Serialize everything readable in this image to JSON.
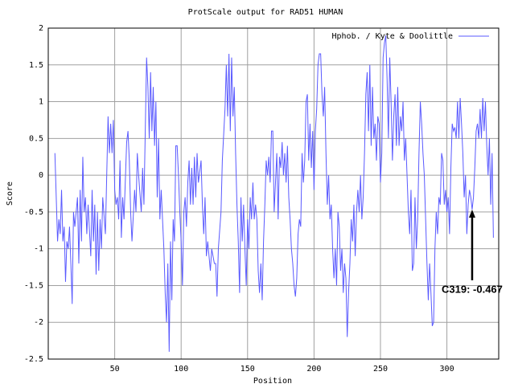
{
  "chart_data": {
    "type": "line",
    "title": "ProtScale output for RAD51 HUMAN",
    "x_label": "Position",
    "y_label": "Score",
    "x": [
      5,
      6,
      7,
      8,
      9,
      10,
      11,
      12,
      13,
      14,
      15,
      16,
      17,
      18,
      19,
      20,
      22,
      23,
      24,
      25,
      26,
      27,
      28,
      29,
      30,
      32,
      33,
      34,
      35,
      36,
      37,
      38,
      39,
      40,
      41,
      43,
      45,
      46,
      47,
      48,
      49,
      50,
      51,
      52,
      53,
      54,
      55,
      56,
      57,
      59,
      60,
      61,
      62,
      63,
      65,
      66,
      67,
      68,
      70,
      71,
      72,
      74,
      75,
      76,
      77,
      78,
      79,
      80,
      81,
      82,
      83,
      84,
      85,
      86,
      87,
      88,
      89,
      90,
      91,
      92,
      93,
      94,
      95,
      96,
      97,
      98,
      99,
      100,
      101,
      102,
      103,
      104,
      105,
      106,
      107,
      108,
      109,
      110,
      111,
      112,
      113,
      115,
      116,
      117,
      118,
      119,
      120,
      122,
      123,
      125,
      126,
      127,
      128,
      130,
      131,
      133,
      134,
      135,
      136,
      137,
      138,
      139,
      140,
      141,
      142,
      143,
      144,
      145,
      146,
      147,
      148,
      149,
      150,
      151,
      152,
      153,
      154,
      155,
      156,
      157,
      158,
      159,
      160,
      161,
      162,
      163,
      164,
      165,
      166,
      167,
      168,
      169,
      170,
      171,
      172,
      173,
      174,
      175,
      176,
      177,
      178,
      179,
      180,
      181,
      182,
      183,
      184,
      185,
      186,
      187,
      188,
      189,
      190,
      191,
      192,
      193,
      194,
      195,
      196,
      197,
      198,
      199,
      200,
      201,
      202,
      203,
      204,
      205,
      206,
      207,
      208,
      209,
      210,
      211,
      212,
      213,
      214,
      215,
      216,
      217,
      218,
      219,
      220,
      221,
      222,
      223,
      224,
      225,
      226,
      227,
      228,
      229,
      230,
      231,
      232,
      233,
      234,
      235,
      236,
      237,
      238,
      239,
      240,
      241,
      242,
      243,
      244,
      245,
      246,
      247,
      248,
      249,
      250,
      251,
      252,
      253,
      254,
      255,
      256,
      257,
      258,
      259,
      260,
      261,
      262,
      263,
      264,
      265,
      266,
      267,
      268,
      269,
      270,
      271,
      272,
      273,
      274,
      275,
      276,
      277,
      278,
      279,
      280,
      281,
      282,
      283,
      284,
      285,
      286,
      287,
      288,
      289,
      290,
      291,
      292,
      293,
      294,
      295,
      296,
      297,
      298,
      299,
      300,
      301,
      302,
      303,
      304,
      305,
      306,
      307,
      308,
      309,
      310,
      311,
      312,
      313,
      314,
      315,
      316,
      317,
      318,
      319,
      320,
      321,
      322,
      323,
      324,
      325,
      326,
      327,
      328,
      329,
      330,
      331,
      332,
      333,
      334,
      335
    ],
    "series": [
      {
        "name": "Hphob. / Kyte & Doolittle",
        "color": "#5a5aff",
        "values": [
          0.3,
          -0.3,
          -0.9,
          -0.6,
          -0.8,
          -0.2,
          -0.9,
          -0.7,
          -1.45,
          -0.9,
          -1.0,
          -0.7,
          -1.2,
          -1.75,
          -0.5,
          -0.7,
          -0.3,
          -1.2,
          -0.2,
          -0.9,
          0.25,
          -0.5,
          -0.3,
          -0.8,
          -0.4,
          -1.1,
          -0.2,
          -0.9,
          -0.4,
          -1.35,
          -0.5,
          -1.3,
          -0.6,
          -1.0,
          -0.3,
          -0.8,
          0.8,
          0.3,
          0.7,
          0.3,
          0.75,
          -0.2,
          -0.4,
          -0.3,
          -0.6,
          0.2,
          -0.85,
          -0.3,
          -0.6,
          0.45,
          0.6,
          0.2,
          -0.5,
          -0.9,
          -0.2,
          -0.5,
          0.3,
          0.0,
          -0.5,
          0.1,
          -0.4,
          1.6,
          1.2,
          0.5,
          1.4,
          0.6,
          1.2,
          0.4,
          1.0,
          -0.3,
          0.5,
          -0.6,
          -0.2,
          -0.6,
          -1.0,
          -1.6,
          -2.0,
          -1.2,
          -2.4,
          -0.9,
          -1.7,
          -0.6,
          -0.9,
          0.4,
          0.4,
          0.0,
          -0.5,
          -0.9,
          -1.5,
          -0.5,
          -0.3,
          -0.7,
          -0.1,
          0.2,
          -0.4,
          0.1,
          -0.4,
          0.25,
          -0.3,
          0.3,
          -0.1,
          0.2,
          -0.4,
          -0.8,
          -0.3,
          -1.1,
          -0.9,
          -1.3,
          -1.0,
          -1.2,
          -1.2,
          -1.65,
          -1.0,
          -0.5,
          0.2,
          0.9,
          1.5,
          0.8,
          1.65,
          0.6,
          1.6,
          0.8,
          1.2,
          0.3,
          -0.4,
          -0.9,
          -1.6,
          -0.3,
          -0.9,
          -0.4,
          -1.0,
          -1.5,
          -0.6,
          -1.0,
          -0.3,
          -0.6,
          -0.1,
          -0.6,
          -0.4,
          -0.6,
          -1.3,
          -1.6,
          -1.2,
          -1.7,
          -0.9,
          -0.4,
          0.2,
          0.0,
          0.25,
          -0.1,
          0.6,
          0.6,
          -0.5,
          -0.1,
          0.3,
          -0.6,
          0.25,
          0.1,
          0.45,
          0.0,
          0.3,
          -0.1,
          0.4,
          -0.3,
          -0.6,
          -1.0,
          -1.2,
          -1.5,
          -1.65,
          -1.4,
          -0.8,
          -0.6,
          -0.7,
          0.3,
          -0.1,
          0.2,
          1.0,
          1.1,
          0.2,
          0.7,
          0.1,
          0.6,
          -0.2,
          0.6,
          0.9,
          1.5,
          1.65,
          1.65,
          1.1,
          0.8,
          1.2,
          0.3,
          -0.4,
          0.0,
          -0.6,
          -0.4,
          -1.0,
          -1.4,
          -1.0,
          -1.5,
          -0.5,
          -0.7,
          -1.3,
          -1.0,
          -1.6,
          -1.2,
          -1.4,
          -2.2,
          -1.6,
          -1.2,
          -0.6,
          -0.9,
          -0.4,
          -1.1,
          -0.5,
          -0.2,
          -0.5,
          0.0,
          -0.6,
          -0.3,
          0.3,
          1.1,
          1.4,
          0.6,
          1.5,
          0.4,
          1.2,
          0.5,
          0.7,
          0.2,
          0.8,
          0.7,
          -0.1,
          0.3,
          1.6,
          1.8,
          1.9,
          1.3,
          0.5,
          1.6,
          1.0,
          0.2,
          0.8,
          1.1,
          0.4,
          1.2,
          0.4,
          0.8,
          0.6,
          1.0,
          0.2,
          0.5,
          0.0,
          -0.5,
          -0.8,
          -0.2,
          -1.3,
          -1.2,
          -0.3,
          -1.0,
          -0.6,
          0.3,
          1.0,
          0.7,
          0.3,
          0.0,
          -0.6,
          -1.2,
          -1.7,
          -1.2,
          -1.6,
          -2.05,
          -2.0,
          -1.0,
          -0.5,
          -0.8,
          -0.3,
          -0.4,
          0.3,
          0.2,
          -0.4,
          -0.2,
          -0.5,
          -0.3,
          -0.8,
          0.1,
          0.7,
          0.6,
          0.65,
          0.5,
          1.0,
          0.5,
          1.05,
          0.7,
          0.3,
          -0.3,
          0.0,
          -0.8,
          -0.4,
          -0.2,
          -0.3,
          -0.467,
          -0.3,
          0.1,
          0.6,
          0.7,
          0.5,
          0.9,
          0.5,
          1.05,
          0.6,
          1.0,
          0.4,
          0.0,
          0.5,
          -0.4,
          0.3,
          -0.85
        ]
      }
    ],
    "xlim": [
      0,
      339
    ],
    "xticks": [
      50,
      100,
      150,
      200,
      250,
      300
    ],
    "ylim": [
      -2.5,
      2
    ],
    "yticks": [
      -2.5,
      -2,
      -1.5,
      -1,
      -0.5,
      0,
      0.5,
      1,
      1.5,
      2
    ],
    "grid": true,
    "legend": "top-right",
    "annotations": [
      {
        "text": "C319: -0.467",
        "x": 319,
        "y": -0.467
      }
    ]
  }
}
